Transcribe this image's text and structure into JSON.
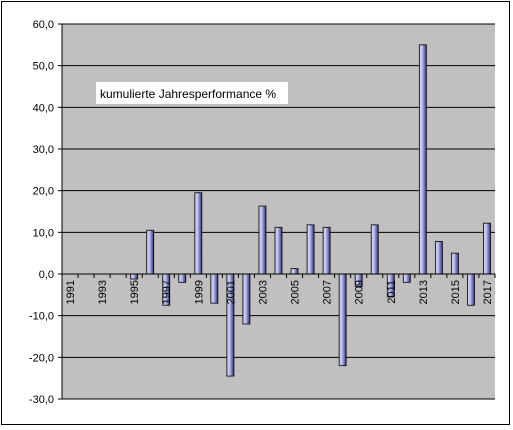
{
  "chart_data": {
    "type": "bar",
    "annotation": "kumulierte Jahresperformance %",
    "years": [
      1991,
      1992,
      1993,
      1994,
      1995,
      1996,
      1997,
      1998,
      1999,
      2000,
      2001,
      2002,
      2003,
      2004,
      2005,
      2006,
      2007,
      2008,
      2009,
      2010,
      2011,
      2012,
      2013,
      2014,
      2015,
      2016,
      2017
    ],
    "values": [
      0,
      0,
      0,
      0,
      -1.2,
      10.5,
      -7.5,
      -2.0,
      19.5,
      -7.0,
      -24.5,
      -12.0,
      16.3,
      11.2,
      1.3,
      11.8,
      11.2,
      -22.0,
      -3.0,
      11.8,
      -5.5,
      -2.0,
      55.0,
      7.8,
      5.0,
      -7.5,
      12.2
    ],
    "x_tick_labels": [
      "1991",
      "1993",
      "1995",
      "1997",
      "1999",
      "2001",
      "2003",
      "2005",
      "2007",
      "2009",
      "2011",
      "2013",
      "2015",
      "2017"
    ],
    "y_tick_labels": [
      "60,0",
      "50,0",
      "40,0",
      "30,0",
      "20,0",
      "10,0",
      "0,0",
      "-10,0",
      "-20,0",
      "-30,0"
    ],
    "y_ticks": [
      60,
      50,
      40,
      30,
      20,
      10,
      0,
      -10,
      -20,
      -30
    ],
    "ylim": [
      -30,
      60
    ],
    "grid": true,
    "colors": {
      "plot_background": "#c0c0c0",
      "bar_fill_light": "#c8c8f4",
      "bar_fill_dark": "#34347c",
      "gridline": "#000000"
    }
  }
}
